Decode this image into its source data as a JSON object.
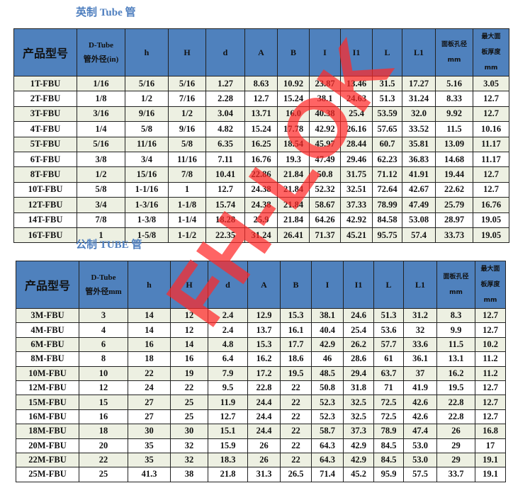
{
  "imperial": {
    "title": "英制 Tube 管",
    "headers": [
      "产品型号",
      "D-Tube",
      "管外径(in)",
      "h",
      "H",
      "d",
      "A",
      "B",
      "I",
      "I1",
      "L",
      "L1",
      "面板孔径",
      "mm",
      "最大面",
      "板厚度",
      "mm"
    ],
    "rows": [
      [
        "1T-FBU",
        "1/16",
        "5/16",
        "5/16",
        "1.27",
        "8.63",
        "10.92",
        "23.87",
        "13.46",
        "31.5",
        "17.27",
        "5.16",
        "3.05"
      ],
      [
        "2T-FBU",
        "1/8",
        "1/2",
        "7/16",
        "2.28",
        "12.7",
        "15.24",
        "38.1",
        "24.63",
        "51.3",
        "31.24",
        "8.33",
        "12.7"
      ],
      [
        "3T-FBU",
        "3/16",
        "9/16",
        "1/2",
        "3.04",
        "13.71",
        "16.0",
        "40.38",
        "25.4",
        "53.59",
        "32.0",
        "9.92",
        "12.7"
      ],
      [
        "4T-FBU",
        "1/4",
        "5/8",
        "9/16",
        "4.82",
        "15.24",
        "17.78",
        "42.92",
        "26.16",
        "57.65",
        "33.52",
        "11.5",
        "10.16"
      ],
      [
        "5T-FBU",
        "5/16",
        "11/16",
        "5/8",
        "6.35",
        "16.25",
        "18.54",
        "45.97",
        "28.44",
        "60.7",
        "35.81",
        "13.09",
        "11.17"
      ],
      [
        "6T-FBU",
        "3/8",
        "3/4",
        "11/16",
        "7.11",
        "16.76",
        "19.3",
        "47.49",
        "29.46",
        "62.23",
        "36.83",
        "14.68",
        "11.17"
      ],
      [
        "8T-FBU",
        "1/2",
        "15/16",
        "7/8",
        "10.41",
        "22.86",
        "21.84",
        "50.8",
        "31.75",
        "71.12",
        "41.91",
        "19.44",
        "12.7"
      ],
      [
        "10T-FBU",
        "5/8",
        "1-1/16",
        "1",
        "12.7",
        "24.38",
        "21.84",
        "52.32",
        "32.51",
        "72.64",
        "42.67",
        "22.62",
        "12.7"
      ],
      [
        "12T-FBU",
        "3/4",
        "1-3/16",
        "1-1/8",
        "15.74",
        "24.38",
        "21.84",
        "58.67",
        "37.33",
        "78.99",
        "47.49",
        "25.79",
        "16.76"
      ],
      [
        "14T-FBU",
        "7/8",
        "1-3/8",
        "1-1/4",
        "18.28",
        "25.9",
        "21.84",
        "64.26",
        "42.92",
        "84.58",
        "53.08",
        "28.97",
        "19.05"
      ],
      [
        "16T-FBU",
        "1",
        "1-5/8",
        "1-1/2",
        "22.35",
        "31.24",
        "26.41",
        "71.37",
        "45.21",
        "95.75",
        "57.4",
        "33.73",
        "19.05"
      ]
    ]
  },
  "metric": {
    "title": "公制 TUBE 管",
    "headers": [
      "产品型号",
      "D-Tube",
      "管外径mm",
      "h",
      "H",
      "d",
      "A",
      "B",
      "I",
      "I1",
      "L",
      "L1",
      "面板孔径",
      "mm",
      "最大面",
      "板厚度",
      "mm"
    ],
    "rows": [
      [
        "3M-FBU",
        "3",
        "14",
        "12",
        "2.4",
        "12.9",
        "15.3",
        "38.1",
        "24.6",
        "51.3",
        "31.2",
        "8.3",
        "12.7"
      ],
      [
        "4M-FBU",
        "4",
        "14",
        "12",
        "2.4",
        "13.7",
        "16.1",
        "40.4",
        "25.4",
        "53.6",
        "32",
        "9.9",
        "12.7"
      ],
      [
        "6M-FBU",
        "6",
        "16",
        "14",
        "4.8",
        "15.3",
        "17.7",
        "42.9",
        "26.2",
        "57.7",
        "33.6",
        "11.5",
        "10.2"
      ],
      [
        "8M-FBU",
        "8",
        "18",
        "16",
        "6.4",
        "16.2",
        "18.6",
        "46",
        "28.6",
        "61",
        "36.1",
        "13.1",
        "11.2"
      ],
      [
        "10M-FBU",
        "10",
        "22",
        "19",
        "7.9",
        "17.2",
        "19.5",
        "48.5",
        "29.4",
        "63.7",
        "37",
        "16.2",
        "11.2"
      ],
      [
        "12M-FBU",
        "12",
        "24",
        "22",
        "9.5",
        "22.8",
        "22",
        "50.8",
        "31.8",
        "71",
        "41.9",
        "19.5",
        "12.7"
      ],
      [
        "15M-FBU",
        "15",
        "27",
        "25",
        "11.9",
        "24.4",
        "22",
        "52.3",
        "32.5",
        "72.5",
        "42.6",
        "22.8",
        "12.7"
      ],
      [
        "16M-FBU",
        "16",
        "27",
        "25",
        "12.7",
        "24.4",
        "22",
        "52.3",
        "32.5",
        "72.5",
        "42.6",
        "22.8",
        "12.7"
      ],
      [
        "18M-FBU",
        "18",
        "30",
        "30",
        "15.1",
        "24.4",
        "22",
        "58.7",
        "37.3",
        "78.9",
        "47.4",
        "26",
        "16.8"
      ],
      [
        "20M-FBU",
        "20",
        "35",
        "32",
        "15.9",
        "26",
        "22",
        "64.3",
        "42.9",
        "84.5",
        "53.0",
        "29",
        "17"
      ],
      [
        "22M-FBU",
        "22",
        "35",
        "32",
        "18.3",
        "26",
        "22",
        "64.3",
        "42.9",
        "84.5",
        "53.0",
        "29",
        "19.1"
      ],
      [
        "25M-FBU",
        "25",
        "41.3",
        "38",
        "21.8",
        "31.3",
        "26.5",
        "71.4",
        "45.2",
        "95.9",
        "57.5",
        "33.7",
        "19.1"
      ]
    ]
  },
  "watermark": {
    "text": "FH-LOK",
    "color": "#ff2828"
  }
}
